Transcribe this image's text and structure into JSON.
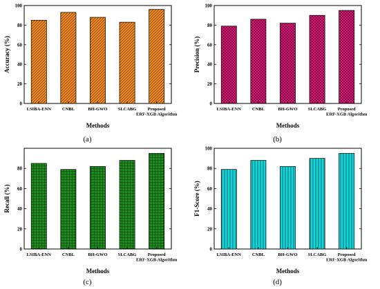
{
  "chart_data": [
    {
      "type": "bar",
      "panel": "(a)",
      "categories": [
        "LSIBA-ENN",
        "CNBL",
        "BH-GWO",
        "SLCABG",
        [
          "Proposed",
          "ERF-XGB Algorithm"
        ]
      ],
      "values": [
        85,
        93,
        88,
        83,
        96
      ],
      "xlabel": "Methods",
      "ylabel": "Accuracy (%)",
      "ylim": [
        0,
        100
      ],
      "yticks": [
        0,
        20,
        40,
        60,
        80,
        100
      ],
      "bar_color": "#F28A1A",
      "pattern": "diagonal-lines"
    },
    {
      "type": "bar",
      "panel": "(b)",
      "categories": [
        "LSIBA-ENN",
        "CNBL",
        "BH-GWO",
        "SLCABG",
        [
          "Proposed",
          "ERF-XGB Algorithm"
        ]
      ],
      "values": [
        79,
        86,
        82,
        90,
        95
      ],
      "xlabel": "Methods",
      "ylabel": "Precision (%)",
      "ylim": [
        0,
        100
      ],
      "yticks": [
        0,
        20,
        40,
        60,
        80,
        100
      ],
      "bar_color": "#E0197A",
      "pattern": "crosshatch-diagonal"
    },
    {
      "type": "bar",
      "panel": "(c)",
      "categories": [
        "LSIBA-ENN",
        "CNBL",
        "BH-GWO",
        "SLCABG",
        [
          "Proposed",
          "ERF-XGB Algorithm"
        ]
      ],
      "values": [
        85,
        79,
        82,
        88,
        95
      ],
      "xlabel": "Methods",
      "ylabel": "Recall (%)",
      "ylim": [
        0,
        100
      ],
      "yticks": [
        0,
        20,
        40,
        60,
        80
      ],
      "bar_color": "#1E8C1E",
      "pattern": "grid"
    },
    {
      "type": "bar",
      "panel": "(d)",
      "categories": [
        "LSIBA-ENN",
        "CNBL",
        "BH-GWO",
        "SLCABG",
        [
          "Proposed",
          "ERF-XGB Algorithm"
        ]
      ],
      "values": [
        79,
        88,
        82,
        90,
        95
      ],
      "xlabel": "Methods",
      "ylabel": "F1-Score (%)",
      "ylim": [
        0,
        100
      ],
      "yticks": [
        0,
        20,
        40,
        60,
        80,
        100
      ],
      "bar_color": "#19D3D8",
      "pattern": "vertical-lines"
    }
  ]
}
